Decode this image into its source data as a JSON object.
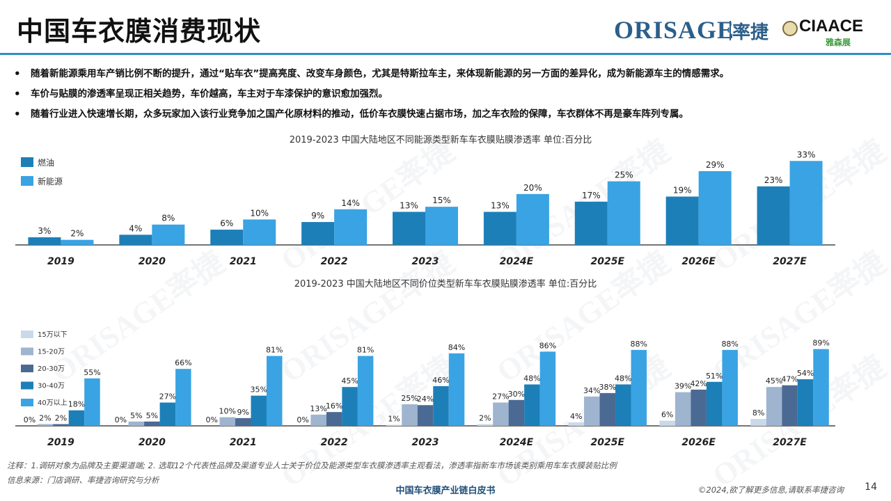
{
  "page": {
    "title": "中国车衣膜消费现状",
    "logo_ori": "ORISAGE",
    "logo_cn": "率捷",
    "logo_ciaace": "CIAACE",
    "logo_yasen": "雅森展",
    "watermark_text": "ORISAGE率捷"
  },
  "bullets": [
    "随着新能源乘用车产销比例不断的提升，通过“贴车衣”提高亮度、改变车身颜色，尤其是特斯拉车主，来体现新能源的另一方面的差异化，成为新能源车主的情感需求。",
    "车价与贴膜的渗透率呈现正相关趋势，车价越高，车主对于车漆保护的意识愈加强烈。",
    "随着行业进入快速增长期，众多玩家加入该行业竞争加之国产化原材料的推动，低价车衣膜快速占据市场，加之车衣险的保障，车衣群体不再是豪车阵列专属。"
  ],
  "chart_data": [
    {
      "type": "bar",
      "title": "2019-2023 中国大陆地区不同能源类型新车车衣膜贴膜渗透率 单位:百分比",
      "categories": [
        "2019",
        "2020",
        "2021",
        "2022",
        "2023",
        "2024E",
        "2025E",
        "2026E",
        "2027E"
      ],
      "series": [
        {
          "name": "燃油",
          "color": "#1d7fb8",
          "values": [
            3,
            4,
            6,
            9,
            13,
            13,
            17,
            19,
            23
          ]
        },
        {
          "name": "新能源",
          "color": "#3aa3e3",
          "values": [
            2,
            8,
            10,
            14,
            15,
            20,
            25,
            29,
            33
          ]
        }
      ],
      "legend": "top-left",
      "ylim": [
        0,
        35
      ]
    },
    {
      "type": "bar",
      "title": "2019-2023 中国大陆地区不同价位类型新车车衣膜贴膜渗透率 单位:百分比",
      "categories": [
        "2019",
        "2020",
        "2021",
        "2022",
        "2023",
        "2024E",
        "2025E",
        "2026E",
        "2027E"
      ],
      "series": [
        {
          "name": "15万以下",
          "color": "#c9d9ea",
          "values": [
            0,
            0,
            0,
            0,
            1,
            2,
            4,
            6,
            8
          ]
        },
        {
          "name": "15-20万",
          "color": "#9fb4cf",
          "values": [
            2,
            5,
            10,
            13,
            25,
            27,
            34,
            39,
            45
          ]
        },
        {
          "name": "20-30万",
          "color": "#4a6a93",
          "values": [
            2,
            5,
            9,
            16,
            24,
            30,
            38,
            42,
            47
          ]
        },
        {
          "name": "30-40万",
          "color": "#1d7fb8",
          "values": [
            18,
            27,
            35,
            45,
            46,
            48,
            48,
            51,
            54
          ]
        },
        {
          "name": "40万以上",
          "color": "#3aa3e3",
          "values": [
            55,
            66,
            81,
            81,
            84,
            86,
            88,
            88,
            89
          ]
        }
      ],
      "legend": "left",
      "ylim": [
        0,
        100
      ]
    }
  ],
  "footer": {
    "note": "注释：1.调研对象为品牌及主要渠道端; 2. 选取12个代表性品牌及渠道专业人士关于价位及能源类型车衣膜渗透率主观看法，渗透率指新车市场该类别乘用车车衣膜装贴比例",
    "source": "信息来源：门店调研、率捷咨询研究与分析",
    "center": "中国车衣膜产业链白皮书",
    "right": "©2024,欲了解更多信息,请联系率捷咨询",
    "page": "14"
  }
}
